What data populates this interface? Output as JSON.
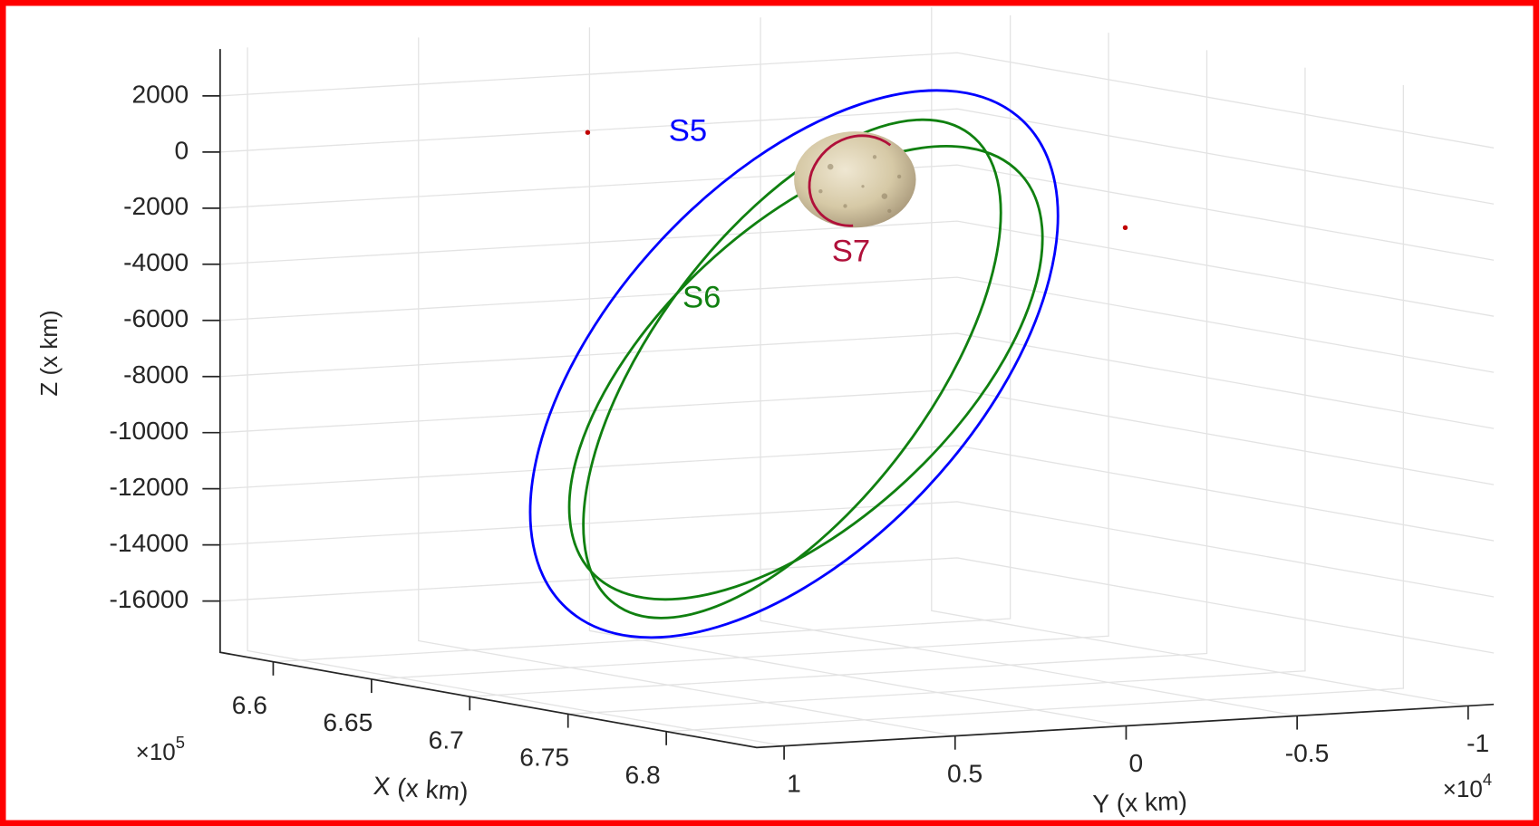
{
  "chart_data": {
    "type": "line3d",
    "x_label": "X (x km)",
    "y_label": "Y (x km)",
    "z_label": "Z (x km)",
    "xlim": [
      657300,
      684600
    ],
    "xticks": [
      {
        "value": 660000,
        "label": "6.6"
      },
      {
        "value": 665000,
        "label": "6.65"
      },
      {
        "value": 670000,
        "label": "6.7"
      },
      {
        "value": 675000,
        "label": "6.75"
      },
      {
        "value": 680000,
        "label": "6.8"
      }
    ],
    "x_multiplier": {
      "base": "×10",
      "power": "5"
    },
    "ylim": [
      10800,
      -10750
    ],
    "yticks": [
      {
        "value": 10000,
        "label": "1"
      },
      {
        "value": 5000,
        "label": "0.5"
      },
      0,
      {
        "value": -5000,
        "label": "-0.5"
      },
      {
        "value": -10000,
        "label": "-1"
      }
    ],
    "y_multiplier": {
      "base": "×10",
      "power": "4"
    },
    "zlim": [
      -17830,
      3670
    ],
    "zticks": [
      2000,
      0,
      -2000,
      -4000,
      -6000,
      -8000,
      -10000,
      -12000,
      -14000,
      -16000
    ],
    "grid": true,
    "annotations": [
      {
        "text": "S5",
        "color": "#0000ff"
      },
      {
        "text": "S6",
        "color": "#108010"
      },
      {
        "text": "S7",
        "color": "#b0103a"
      }
    ]
  }
}
